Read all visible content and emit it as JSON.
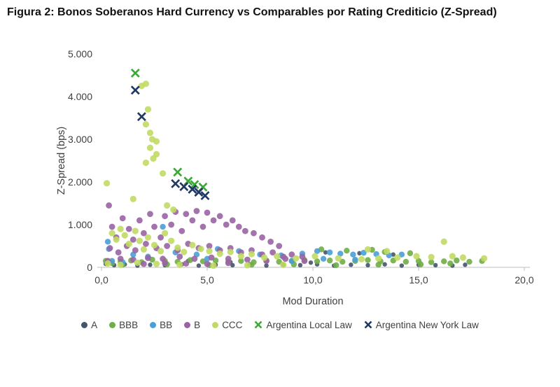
{
  "title": "Figura 2: Bonos Soberanos Hard Currency vs Comparables por Rating Crediticio (Z-Spread)",
  "chart_data": {
    "type": "scatter",
    "title": "Bonos Soberanos Hard Currency vs Comparables por Rating Crediticio (Z-Spread)",
    "xlabel": "Mod Duration",
    "ylabel": "Z-Spread (bps)",
    "xlim": [
      0,
      20
    ],
    "ylim": [
      0,
      5000
    ],
    "grid": false,
    "legend_position": "bottom",
    "x_ticks": [
      {
        "value": 0,
        "label": "0,0"
      },
      {
        "value": 5,
        "label": "5,0"
      },
      {
        "value": 10,
        "label": "10,0"
      },
      {
        "value": 15,
        "label": "15,0"
      },
      {
        "value": 20,
        "label": "20,0"
      }
    ],
    "y_ticks": [
      {
        "value": 0,
        "label": "0"
      },
      {
        "value": 1000,
        "label": "1.000"
      },
      {
        "value": 2000,
        "label": "2.000"
      },
      {
        "value": 3000,
        "label": "3.000"
      },
      {
        "value": 4000,
        "label": "4.000"
      },
      {
        "value": 5000,
        "label": "5.000"
      }
    ],
    "series": [
      {
        "name": "A",
        "color": "#44546a",
        "marker": "circle",
        "size": 3.2,
        "points": [
          [
            0.2,
            80
          ],
          [
            0.6,
            50
          ],
          [
            1.1,
            70
          ],
          [
            1.7,
            40
          ],
          [
            2.3,
            60
          ],
          [
            3.0,
            50
          ],
          [
            3.8,
            70
          ],
          [
            4.6,
            40
          ],
          [
            5.4,
            60
          ],
          [
            6.2,
            50
          ],
          [
            7.0,
            70
          ],
          [
            7.8,
            40
          ],
          [
            8.6,
            60
          ],
          [
            9.4,
            50
          ],
          [
            10.2,
            70
          ],
          [
            11.0,
            40
          ],
          [
            11.8,
            60
          ],
          [
            12.6,
            50
          ],
          [
            13.4,
            70
          ],
          [
            14.2,
            40
          ],
          [
            15.0,
            60
          ],
          [
            15.8,
            50
          ],
          [
            16.6,
            40
          ],
          [
            17.2,
            60
          ],
          [
            10.6,
            350
          ],
          [
            12.2,
            330
          ],
          [
            13.8,
            300
          ],
          [
            9.9,
            110
          ],
          [
            4.1,
            150
          ],
          [
            6.1,
            120
          ]
        ]
      },
      {
        "name": "BBB",
        "color": "#70ad47",
        "marker": "circle",
        "size": 4.2,
        "points": [
          [
            0.2,
            150
          ],
          [
            0.5,
            100
          ],
          [
            0.9,
            130
          ],
          [
            1.4,
            160
          ],
          [
            1.9,
            120
          ],
          [
            2.4,
            180
          ],
          [
            3.0,
            150
          ],
          [
            3.6,
            130
          ],
          [
            4.2,
            170
          ],
          [
            4.8,
            140
          ],
          [
            5.4,
            160
          ],
          [
            6.0,
            130
          ],
          [
            6.6,
            150
          ],
          [
            7.2,
            120
          ],
          [
            7.8,
            160
          ],
          [
            8.4,
            130
          ],
          [
            9.0,
            150
          ],
          [
            9.6,
            170
          ],
          [
            10.2,
            140
          ],
          [
            10.8,
            160
          ],
          [
            11.4,
            130
          ],
          [
            12.0,
            150
          ],
          [
            12.6,
            170
          ],
          [
            13.2,
            140
          ],
          [
            13.8,
            160
          ],
          [
            14.4,
            130
          ],
          [
            15.0,
            150
          ],
          [
            15.6,
            120
          ],
          [
            16.2,
            140
          ],
          [
            16.8,
            160
          ],
          [
            17.4,
            130
          ],
          [
            18.0,
            150
          ],
          [
            10.4,
            420
          ],
          [
            11.6,
            390
          ],
          [
            12.8,
            410
          ],
          [
            13.4,
            360
          ],
          [
            14.6,
            330
          ],
          [
            1.0,
            60
          ],
          [
            3.1,
            70
          ],
          [
            5.1,
            50
          ],
          [
            7.1,
            60
          ],
          [
            9.1,
            70
          ],
          [
            11.1,
            50
          ],
          [
            13.1,
            60
          ],
          [
            15.1,
            70
          ],
          [
            16.5,
            90
          ]
        ]
      },
      {
        "name": "BB",
        "color": "#4a9fd8",
        "marker": "circle",
        "size": 4.2,
        "points": [
          [
            0.3,
            600
          ],
          [
            0.35,
            430
          ],
          [
            2.9,
            950
          ],
          [
            1.5,
            300
          ],
          [
            2.2,
            250
          ],
          [
            3.5,
            350
          ],
          [
            4.5,
            300
          ],
          [
            5.5,
            430
          ],
          [
            6.5,
            380
          ],
          [
            7.5,
            300
          ],
          [
            8.5,
            280
          ],
          [
            9.5,
            320
          ],
          [
            10.2,
            380
          ],
          [
            10.8,
            350
          ],
          [
            11.3,
            320
          ],
          [
            11.9,
            300
          ],
          [
            12.4,
            340
          ],
          [
            13.0,
            310
          ],
          [
            13.6,
            280
          ],
          [
            14.2,
            300
          ],
          [
            0.5,
            150
          ],
          [
            1.0,
            120
          ],
          [
            5.0,
            200
          ],
          [
            9.0,
            150
          ],
          [
            10.5,
            200
          ],
          [
            12.0,
            180
          ]
        ]
      },
      {
        "name": "B",
        "color": "#9a64a4",
        "marker": "circle",
        "size": 4.4,
        "points": [
          [
            0.35,
            1450
          ],
          [
            0.5,
            950
          ],
          [
            0.7,
            700
          ],
          [
            1.0,
            1150
          ],
          [
            1.3,
            900
          ],
          [
            1.5,
            650
          ],
          [
            1.8,
            1100
          ],
          [
            2.0,
            800
          ],
          [
            2.3,
            1250
          ],
          [
            2.5,
            950
          ],
          [
            2.8,
            700
          ],
          [
            3.0,
            1200
          ],
          [
            3.3,
            1000
          ],
          [
            3.5,
            1300
          ],
          [
            3.8,
            850
          ],
          [
            4.0,
            1250
          ],
          [
            4.3,
            1100
          ],
          [
            4.5,
            1320
          ],
          [
            4.8,
            950
          ],
          [
            5.0,
            1280
          ],
          [
            5.3,
            1100
          ],
          [
            5.6,
            1200
          ],
          [
            5.9,
            1000
          ],
          [
            6.2,
            1100
          ],
          [
            6.5,
            950
          ],
          [
            6.8,
            850
          ],
          [
            7.2,
            800
          ],
          [
            7.6,
            700
          ],
          [
            8.0,
            600
          ],
          [
            8.4,
            500
          ],
          [
            0.4,
            450
          ],
          [
            0.8,
            350
          ],
          [
            1.2,
            500
          ],
          [
            1.6,
            400
          ],
          [
            2.1,
            550
          ],
          [
            2.6,
            450
          ],
          [
            3.1,
            500
          ],
          [
            3.6,
            400
          ],
          [
            4.1,
            550
          ],
          [
            4.6,
            450
          ],
          [
            5.1,
            500
          ],
          [
            5.6,
            400
          ],
          [
            6.1,
            450
          ],
          [
            6.6,
            350
          ],
          [
            7.1,
            400
          ],
          [
            7.6,
            300
          ],
          [
            8.1,
            350
          ],
          [
            8.6,
            250
          ],
          [
            9.0,
            300
          ],
          [
            9.5,
            250
          ],
          [
            0.3,
            150
          ],
          [
            0.9,
            200
          ],
          [
            1.5,
            180
          ],
          [
            2.2,
            220
          ],
          [
            2.9,
            200
          ],
          [
            3.7,
            250
          ],
          [
            4.4,
            200
          ],
          [
            5.2,
            230
          ],
          [
            6.0,
            200
          ],
          [
            6.9,
            180
          ],
          [
            7.8,
            150
          ],
          [
            8.7,
            200
          ],
          [
            9.6,
            150
          ],
          [
            2.0,
            80
          ],
          [
            3.0,
            100
          ],
          [
            4.0,
            90
          ],
          [
            5.0,
            80
          ],
          [
            6.0,
            100
          ]
        ]
      },
      {
        "name": "CCC",
        "color": "#c0da63",
        "marker": "circle",
        "size": 4.6,
        "points": [
          [
            0.25,
            1970
          ],
          [
            1.9,
            4250
          ],
          [
            2.1,
            4300
          ],
          [
            2.2,
            3700
          ],
          [
            2.1,
            3350
          ],
          [
            2.3,
            3150
          ],
          [
            2.4,
            3000
          ],
          [
            2.6,
            2950
          ],
          [
            2.3,
            2800
          ],
          [
            2.6,
            2650
          ],
          [
            2.45,
            2550
          ],
          [
            2.1,
            2450
          ],
          [
            2.9,
            2200
          ],
          [
            1.5,
            1600
          ],
          [
            3.1,
            1450
          ],
          [
            3.4,
            1350
          ],
          [
            0.5,
            800
          ],
          [
            0.7,
            650
          ],
          [
            0.9,
            900
          ],
          [
            1.1,
            750
          ],
          [
            1.3,
            550
          ],
          [
            1.6,
            850
          ],
          [
            1.8,
            620
          ],
          [
            2.0,
            420
          ],
          [
            2.2,
            700
          ],
          [
            2.5,
            520
          ],
          [
            2.8,
            380
          ],
          [
            3.0,
            800
          ],
          [
            3.3,
            620
          ],
          [
            3.6,
            460
          ],
          [
            3.9,
            360
          ],
          [
            4.3,
            520
          ],
          [
            4.7,
            430
          ],
          [
            5.1,
            380
          ],
          [
            5.6,
            320
          ],
          [
            6.1,
            360
          ],
          [
            6.6,
            260
          ],
          [
            7.1,
            310
          ],
          [
            7.7,
            230
          ],
          [
            8.3,
            260
          ],
          [
            9.2,
            210
          ],
          [
            10.1,
            260
          ],
          [
            11.2,
            210
          ],
          [
            12.3,
            190
          ],
          [
            12.6,
            420
          ],
          [
            13.1,
            210
          ],
          [
            13.5,
            380
          ],
          [
            14.0,
            230
          ],
          [
            14.9,
            260
          ],
          [
            15.6,
            240
          ],
          [
            16.2,
            600
          ],
          [
            16.6,
            260
          ],
          [
            17.1,
            230
          ],
          [
            18.1,
            210
          ],
          [
            0.3,
            90
          ],
          [
            0.9,
            60
          ],
          [
            1.7,
            110
          ],
          [
            2.6,
            80
          ],
          [
            3.7,
            60
          ],
          [
            5.3,
            40
          ],
          [
            6.9,
            50
          ],
          [
            8.6,
            60
          ]
        ]
      },
      {
        "name": "Argentina Local Law",
        "color": "#3aaa35",
        "marker": "x",
        "size": 5.5,
        "points": [
          [
            1.6,
            4550
          ],
          [
            3.6,
            2230
          ],
          [
            4.1,
            2020
          ],
          [
            4.4,
            1940
          ],
          [
            4.8,
            1880
          ]
        ]
      },
      {
        "name": "Argentina New York Law",
        "color": "#1f3864",
        "marker": "x",
        "size": 5.5,
        "points": [
          [
            1.6,
            4150
          ],
          [
            1.9,
            3530
          ],
          [
            3.5,
            1960
          ],
          [
            3.9,
            1890
          ],
          [
            4.3,
            1830
          ],
          [
            4.6,
            1760
          ],
          [
            4.9,
            1680
          ]
        ]
      }
    ]
  }
}
